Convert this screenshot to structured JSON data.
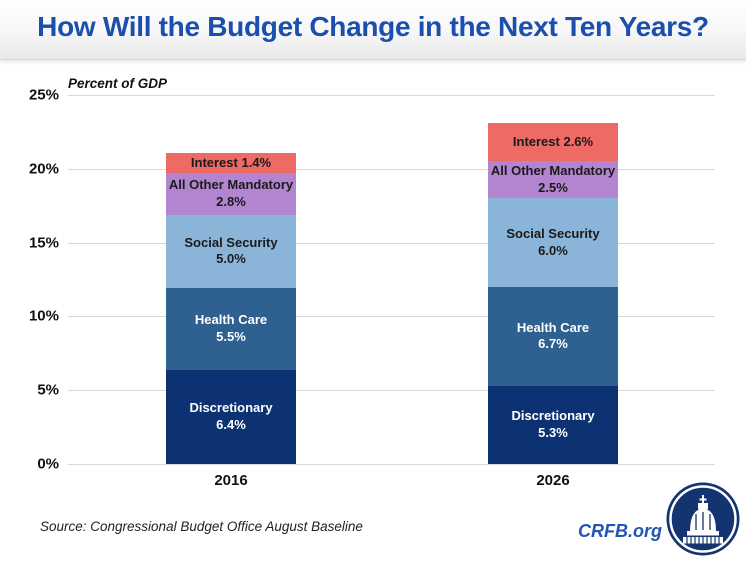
{
  "header": {
    "title": "How Will the Budget Change in the Next Ten Years?"
  },
  "chart_data": {
    "type": "bar",
    "variant": "stacked-column",
    "title": "How Will the Budget Change in the Next Ten Years?",
    "axis_title": "Percent of GDP",
    "categories": [
      "2016",
      "2026"
    ],
    "series": [
      {
        "name": "Discretionary",
        "values": [
          6.4,
          5.3
        ],
        "color": "#0d3274",
        "label_color": "#ffffff",
        "inline_value": false
      },
      {
        "name": "Health Care",
        "values": [
          5.5,
          6.7
        ],
        "color": "#2e6190",
        "label_color": "#ffffff",
        "inline_value": false
      },
      {
        "name": "Social Security",
        "values": [
          5.0,
          6.0
        ],
        "color": "#8bb4d9",
        "label_color": "#1a1a1a",
        "inline_value": false
      },
      {
        "name": "All Other Mandatory",
        "values": [
          2.8,
          2.5
        ],
        "color": "#b385d0",
        "label_color": "#1a1a1a",
        "inline_value": false
      },
      {
        "name": "Interest",
        "values": [
          1.4,
          2.6
        ],
        "color": "#ee6a65",
        "label_color": "#1a1a1a",
        "inline_value": true
      }
    ],
    "y_ticks": [
      "25%",
      "20%",
      "15%",
      "10%",
      "5%",
      "0%"
    ],
    "ylim": [
      0,
      25
    ],
    "grid": true,
    "legend_position": "none",
    "value_suffix": "%"
  },
  "footer": {
    "source": "Source: Congressional Budget Office August Baseline",
    "site": "CRFB.org"
  },
  "colors": {
    "title_blue": "#1b4fae",
    "crfb_blue": "#2156b5",
    "gridline": "#d9d9d9",
    "logo_navy": "#143471"
  }
}
